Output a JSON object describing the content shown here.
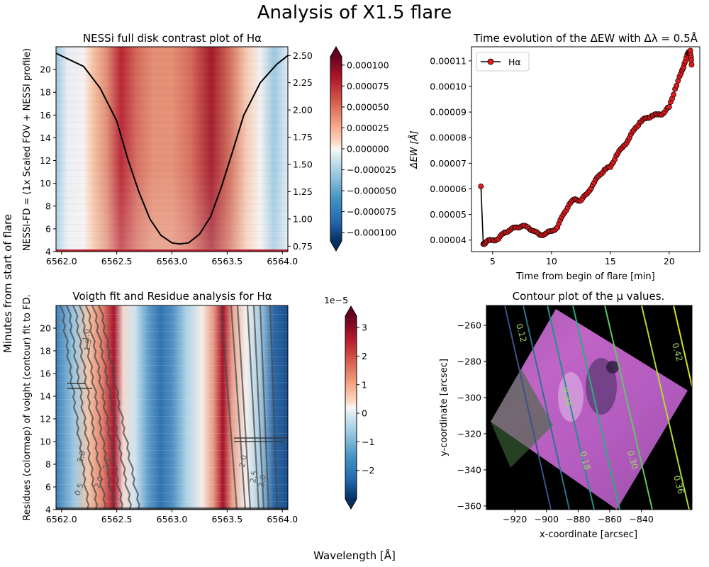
{
  "suptitle": "Analysis of X1.5 flare",
  "fig_ylabel": "Minutes from start of flare",
  "fig_xlabel": "Wavelength [Å]",
  "colors": {
    "line_black": "#000000",
    "marker_red": "#e41a1c",
    "rdbu_neg": "#08306b",
    "rdbu_pos": "#67001f"
  },
  "chart_data": [
    {
      "id": "top-left",
      "type": "heatmap",
      "title": "NESSi full disk contrast plot of Hα",
      "ylabel": "NESSI-FD = (1x Scaled FOV + NESSI profile)",
      "xlim": [
        6561.95,
        6564.05
      ],
      "ylim": [
        4,
        22
      ],
      "xticks": [
        "6562.0",
        "6562.5",
        "6563.0",
        "6563.5",
        "6564.0"
      ],
      "yticks": [
        "4",
        "6",
        "8",
        "10",
        "12",
        "14",
        "16",
        "18",
        "20"
      ],
      "twin_yticks": [
        "0.75",
        "1.00",
        "1.25",
        "1.50",
        "1.75",
        "2.00",
        "2.25",
        "2.50"
      ],
      "twin_ylim": [
        0.7,
        2.58
      ],
      "colorbar_ticks": [
        "0.000100",
        "0.000075",
        "0.000050",
        "0.000025",
        "0.000000",
        "−0.000025",
        "−0.000050",
        "−0.000075",
        "−0.000100"
      ],
      "colorbar_range": [
        -0.00011,
        0.00011
      ],
      "profile_line": {
        "x": [
          6561.95,
          6562.2,
          6562.35,
          6562.5,
          6562.6,
          6562.7,
          6562.8,
          6562.9,
          6563.0,
          6563.07,
          6563.15,
          6563.25,
          6563.35,
          6563.45,
          6563.55,
          6563.65,
          6563.8,
          6563.95,
          6564.05
        ],
        "y": [
          2.52,
          2.4,
          2.2,
          1.9,
          1.55,
          1.25,
          1.0,
          0.85,
          0.78,
          0.77,
          0.78,
          0.86,
          1.02,
          1.3,
          1.62,
          1.95,
          2.25,
          2.42,
          2.5
        ]
      }
    },
    {
      "id": "top-right",
      "type": "line",
      "title": "Time evolution of the ΔEW with Δλ = 0.5Å",
      "xlabel": "Time from begin of flare [min]",
      "ylabel": "ΔEW [Å]",
      "xlim": [
        3.2,
        22.6
      ],
      "ylim": [
        3.55e-05,
        0.0001155
      ],
      "xticks": [
        "5",
        "10",
        "15",
        "20"
      ],
      "yticks": [
        "0.00004",
        "0.00005",
        "0.00006",
        "0.00007",
        "0.00008",
        "0.00009",
        "0.00010",
        "0.00011"
      ],
      "legend": "Hα",
      "legend_position": "top-left",
      "x": [
        4.0,
        4.2,
        4.5,
        5.0,
        5.5,
        6.0,
        6.5,
        7.0,
        7.5,
        8.0,
        8.5,
        9.0,
        9.5,
        10.0,
        10.5,
        11.0,
        11.5,
        12.0,
        12.5,
        13.0,
        13.5,
        14.0,
        14.5,
        15.0,
        15.5,
        16.0,
        16.5,
        17.0,
        17.5,
        18.0,
        18.5,
        19.0,
        19.5,
        20.0,
        20.5,
        21.0,
        21.3,
        21.6,
        21.8,
        21.9
      ],
      "y": [
        6.1e-05,
        3.85e-05,
        3.95e-05,
        4e-05,
        4.05e-05,
        4.3e-05,
        4.4e-05,
        4.5e-05,
        4.55e-05,
        4.5e-05,
        4.35e-05,
        4.2e-05,
        4.25e-05,
        4.35e-05,
        4.5e-05,
        5e-05,
        5.4e-05,
        5.6e-05,
        5.55e-05,
        5.8e-05,
        6.15e-05,
        6.5e-05,
        6.75e-05,
        6.85e-05,
        7.3e-05,
        7.6e-05,
        7.9e-05,
        8.3e-05,
        8.6e-05,
        8.75e-05,
        8.85e-05,
        8.9e-05,
        8.95e-05,
        9.2e-05,
        9.9e-05,
        0.000105,
        0.000109,
        0.000113,
        0.000114,
        0.0001085
      ]
    },
    {
      "id": "bottom-left",
      "type": "heatmap",
      "title": "Voigth fit and Residue analysis for Hα",
      "ylabel": "Residues (colormap) of voight (contour) fit to FD.",
      "xlim": [
        6561.95,
        6564.05
      ],
      "ylim": [
        4,
        22
      ],
      "xticks": [
        "6562.0",
        "6562.5",
        "6563.0",
        "6563.5",
        "6564.0"
      ],
      "yticks": [
        "4",
        "6",
        "8",
        "10",
        "12",
        "14",
        "16",
        "18",
        "20"
      ],
      "colorbar_ticks": [
        "3",
        "2",
        "1",
        "0",
        "−1",
        "−2"
      ],
      "colorbar_range": [
        -3.0,
        3.4
      ],
      "colorbar_scale": "1e−5",
      "contour_labels": [
        "0.5",
        "1.0",
        "1.5",
        "2.0",
        "2.5",
        "3.0",
        "3.0",
        "2.5",
        "2.0"
      ]
    },
    {
      "id": "bottom-right",
      "type": "contour",
      "title": "Contour plot of the μ values.",
      "xlabel": "x-coordinate [arcsec]",
      "ylabel": "y-coordinate [arcsec]",
      "xlim": [
        -938,
        -808
      ],
      "ylim": [
        -362,
        -249
      ],
      "xticks": [
        "−920",
        "−900",
        "−880",
        "−860",
        "−840"
      ],
      "yticks": [
        "−260",
        "−280",
        "−300",
        "−320",
        "−340",
        "−360"
      ],
      "contour_levels": [
        "0.12",
        "0.18",
        "0.24",
        "0.30",
        "0.36",
        "0.42"
      ]
    }
  ]
}
